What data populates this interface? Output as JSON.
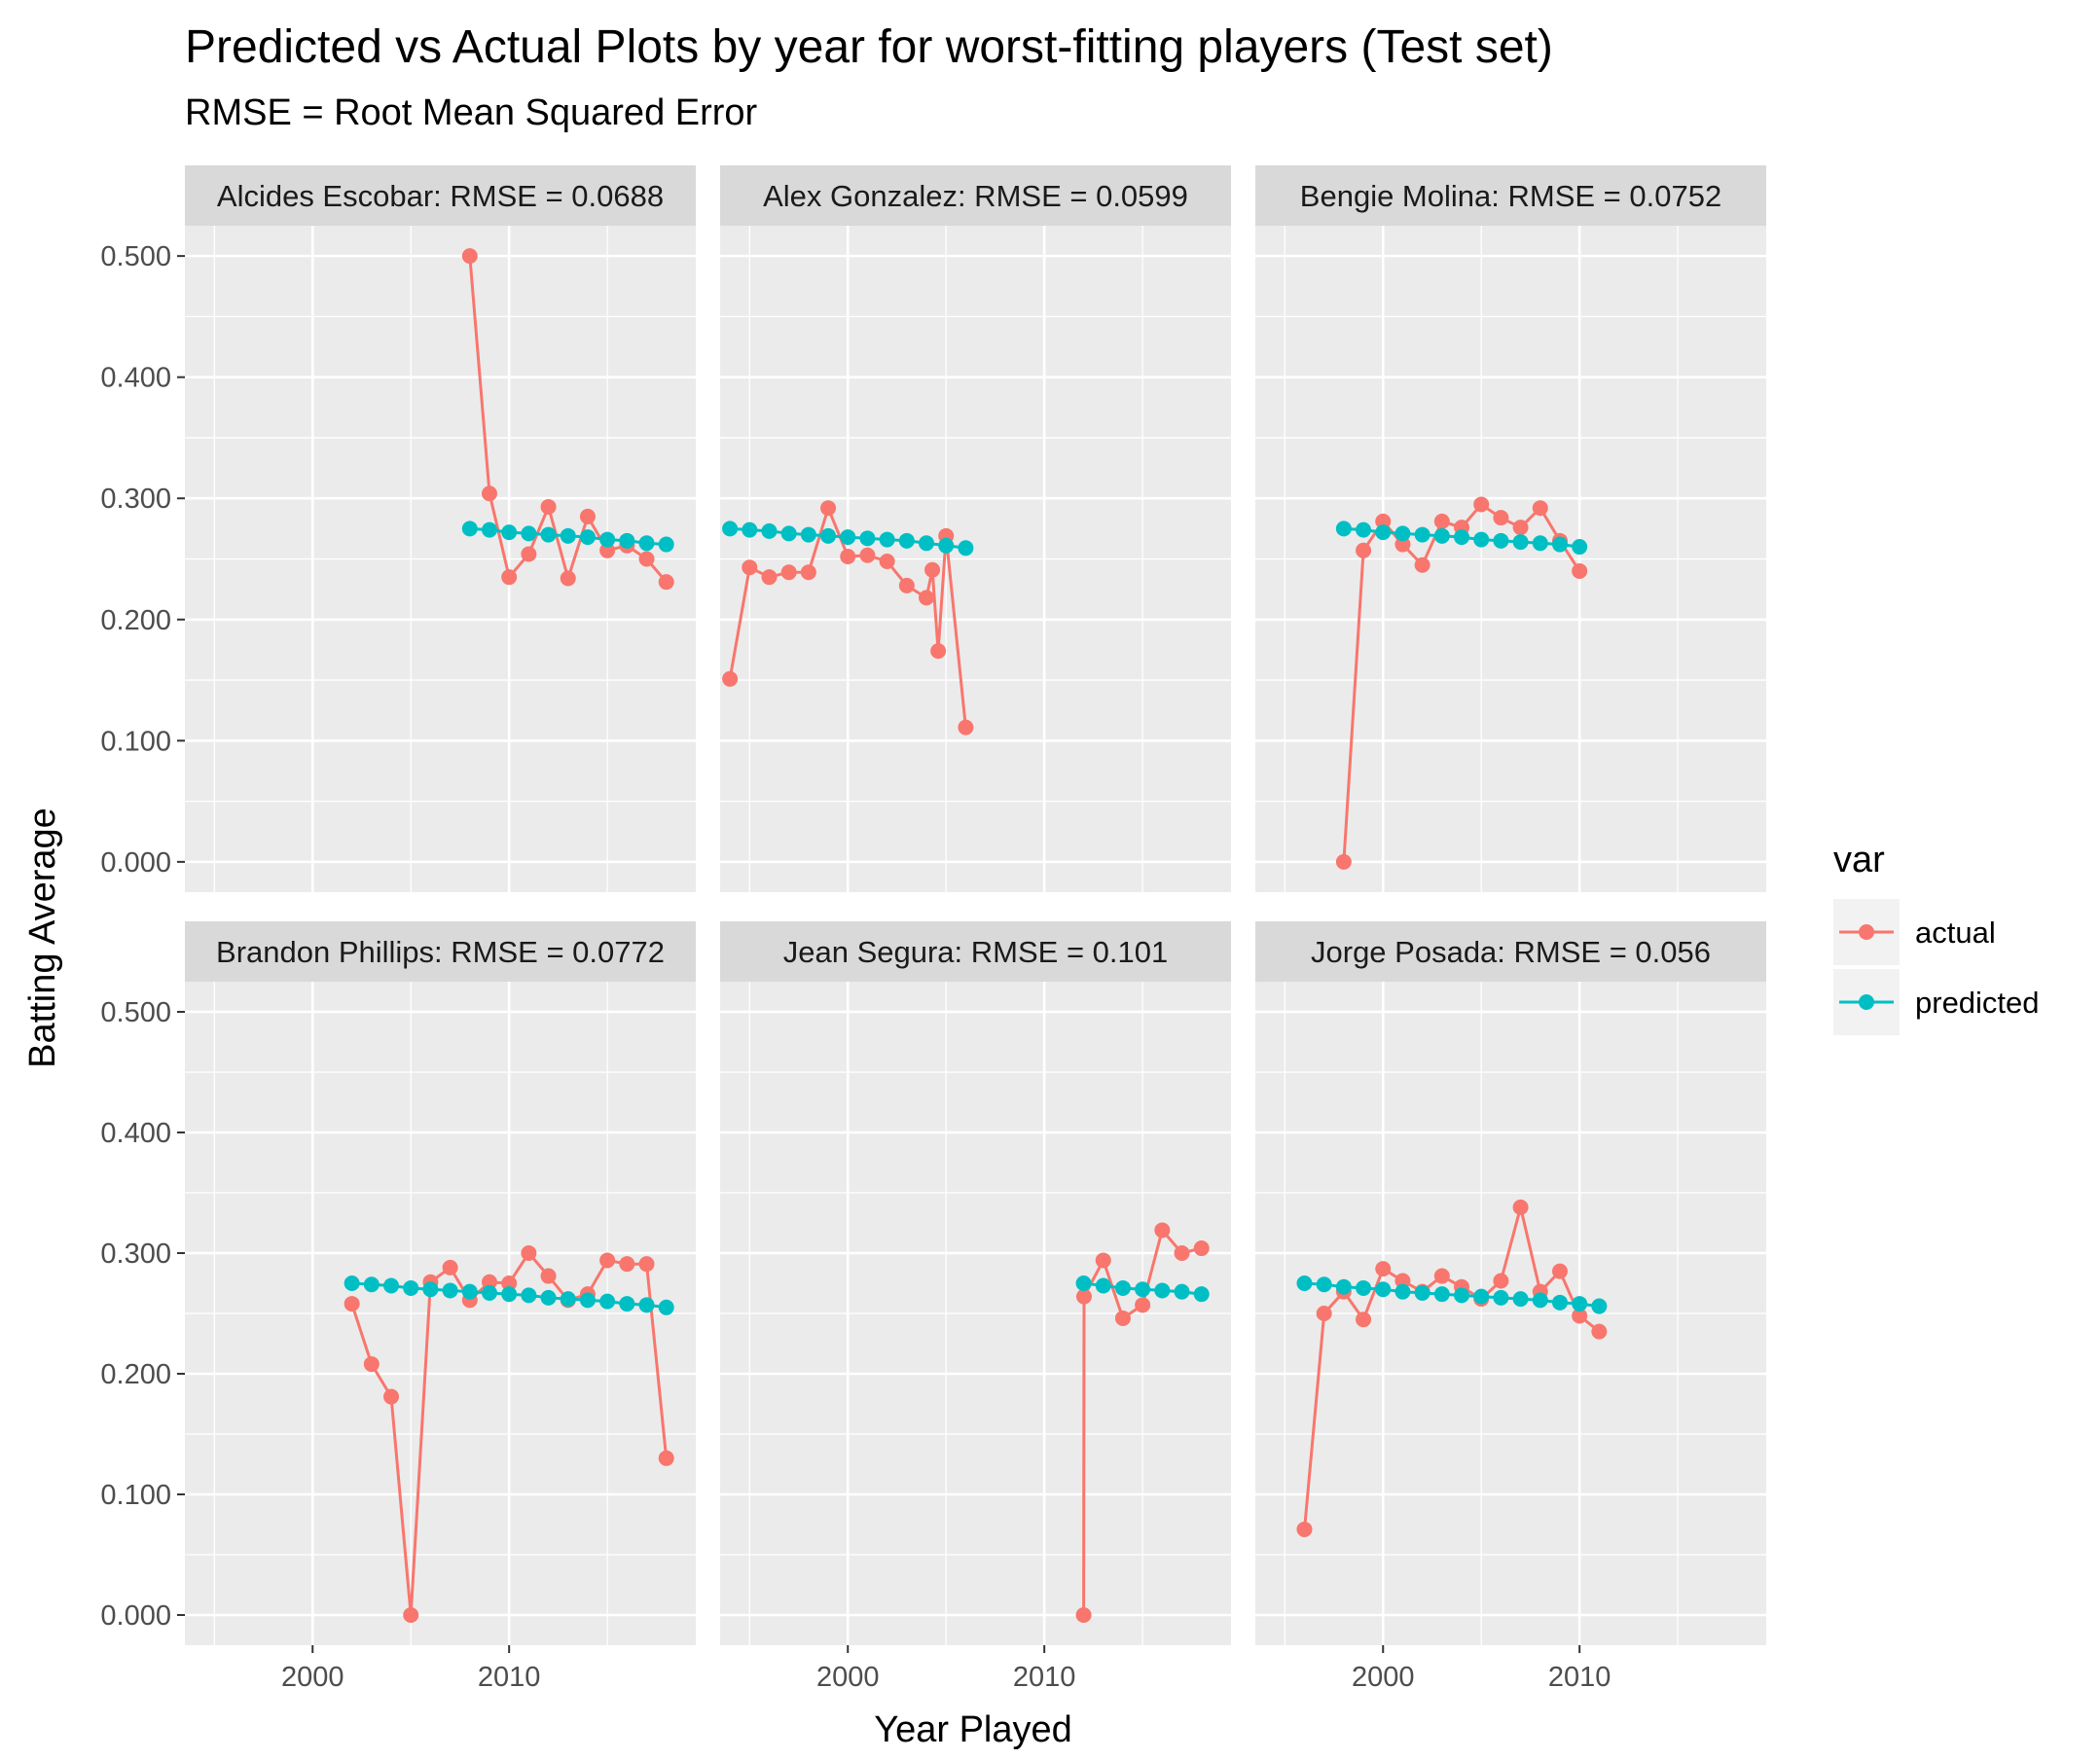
{
  "chart_data": {
    "type": "line",
    "title": "Predicted vs Actual Plots by year for worst-fitting players (Test set)",
    "subtitle": "RMSE = Root Mean Squared Error",
    "xlabel": "Year Played",
    "ylabel": "Batting Average",
    "xlim": [
      1993.5,
      2019.5
    ],
    "ylim": [
      -0.025,
      0.525
    ],
    "x_ticks": [
      2000,
      2010
    ],
    "x_tick_labels": [
      "2000",
      "2010"
    ],
    "y_ticks": [
      0,
      0.1,
      0.2,
      0.3,
      0.4,
      0.5
    ],
    "y_tick_labels": [
      "0.000",
      "0.100",
      "0.200",
      "0.300",
      "0.400",
      "0.500"
    ],
    "grid": true,
    "legend": {
      "title": "var",
      "position": "right",
      "entries": [
        {
          "label": "actual",
          "color": "#F8766D"
        },
        {
          "label": "predicted",
          "color": "#00BFC4"
        }
      ]
    },
    "facets": [
      {
        "label": "Alcides Escobar: RMSE = 0.0688",
        "series": [
          {
            "name": "actual",
            "x": [
              2008,
              2009,
              2010,
              2011,
              2012,
              2013,
              2014,
              2015,
              2016,
              2017,
              2018
            ],
            "y": [
              0.5,
              0.304,
              0.235,
              0.254,
              0.293,
              0.234,
              0.285,
              0.257,
              0.261,
              0.25,
              0.231
            ]
          },
          {
            "name": "predicted",
            "x": [
              2008,
              2009,
              2010,
              2011,
              2012,
              2013,
              2014,
              2015,
              2016,
              2017,
              2018
            ],
            "y": [
              0.275,
              0.274,
              0.272,
              0.271,
              0.27,
              0.269,
              0.268,
              0.266,
              0.265,
              0.263,
              0.262
            ]
          }
        ]
      },
      {
        "label": "Alex Gonzalez: RMSE = 0.0599",
        "series": [
          {
            "name": "actual",
            "x": [
              1994,
              1995,
              1996,
              1997,
              1998,
              1999,
              2000,
              2001,
              2002,
              2003,
              2004,
              2004.3,
              2004.6,
              2005,
              2006
            ],
            "y": [
              0.151,
              0.243,
              0.235,
              0.239,
              0.239,
              0.292,
              0.252,
              0.253,
              0.248,
              0.228,
              0.218,
              0.241,
              0.174,
              0.269,
              0.111
            ]
          },
          {
            "name": "predicted",
            "x": [
              1994,
              1995,
              1996,
              1997,
              1998,
              1999,
              2000,
              2001,
              2002,
              2003,
              2004,
              2005,
              2006
            ],
            "y": [
              0.275,
              0.274,
              0.273,
              0.271,
              0.27,
              0.269,
              0.268,
              0.267,
              0.266,
              0.265,
              0.263,
              0.261,
              0.259
            ]
          }
        ]
      },
      {
        "label": "Bengie Molina: RMSE = 0.0752",
        "series": [
          {
            "name": "actual",
            "x": [
              1998,
              1999,
              2000,
              2001,
              2002,
              2003,
              2004,
              2005,
              2006,
              2007,
              2008,
              2009,
              2010
            ],
            "y": [
              0.0,
              0.257,
              0.281,
              0.262,
              0.245,
              0.281,
              0.276,
              0.295,
              0.284,
              0.276,
              0.292,
              0.265,
              0.24
            ]
          },
          {
            "name": "predicted",
            "x": [
              1998,
              1999,
              2000,
              2001,
              2002,
              2003,
              2004,
              2005,
              2006,
              2007,
              2008,
              2009,
              2010
            ],
            "y": [
              0.275,
              0.274,
              0.272,
              0.271,
              0.27,
              0.269,
              0.268,
              0.266,
              0.265,
              0.264,
              0.263,
              0.262,
              0.26
            ]
          }
        ]
      },
      {
        "label": "Brandon Phillips: RMSE = 0.0772",
        "series": [
          {
            "name": "actual",
            "x": [
              2002,
              2003,
              2004,
              2005,
              2006,
              2007,
              2008,
              2009,
              2010,
              2011,
              2012,
              2013,
              2014,
              2015,
              2016,
              2017,
              2018
            ],
            "y": [
              0.258,
              0.208,
              0.181,
              0.0,
              0.276,
              0.288,
              0.261,
              0.276,
              0.275,
              0.3,
              0.281,
              0.261,
              0.266,
              0.294,
              0.291,
              0.291,
              0.13
            ]
          },
          {
            "name": "predicted",
            "x": [
              2002,
              2003,
              2004,
              2005,
              2006,
              2007,
              2008,
              2009,
              2010,
              2011,
              2012,
              2013,
              2014,
              2015,
              2016,
              2017,
              2018
            ],
            "y": [
              0.275,
              0.274,
              0.273,
              0.271,
              0.27,
              0.269,
              0.268,
              0.267,
              0.266,
              0.265,
              0.263,
              0.262,
              0.261,
              0.26,
              0.258,
              0.257,
              0.255
            ]
          }
        ]
      },
      {
        "label": "Jean Segura: RMSE = 0.101",
        "series": [
          {
            "name": "actual",
            "x": [
              2012,
              2012.02,
              2013,
              2014,
              2015,
              2016,
              2017,
              2018
            ],
            "y": [
              0.0,
              0.264,
              0.294,
              0.246,
              0.257,
              0.319,
              0.3,
              0.304
            ]
          },
          {
            "name": "predicted",
            "x": [
              2012,
              2013,
              2014,
              2015,
              2016,
              2017,
              2018
            ],
            "y": [
              0.275,
              0.273,
              0.271,
              0.27,
              0.269,
              0.268,
              0.266
            ]
          }
        ]
      },
      {
        "label": "Jorge Posada: RMSE = 0.056",
        "series": [
          {
            "name": "actual",
            "x": [
              1996,
              1997,
              1998,
              1999,
              2000,
              2001,
              2002,
              2003,
              2004,
              2005,
              2006,
              2007,
              2008,
              2009,
              2010,
              2011
            ],
            "y": [
              0.071,
              0.25,
              0.268,
              0.245,
              0.287,
              0.277,
              0.268,
              0.281,
              0.272,
              0.262,
              0.277,
              0.338,
              0.268,
              0.285,
              0.248,
              0.235
            ]
          },
          {
            "name": "predicted",
            "x": [
              1996,
              1997,
              1998,
              1999,
              2000,
              2001,
              2002,
              2003,
              2004,
              2005,
              2006,
              2007,
              2008,
              2009,
              2010,
              2011
            ],
            "y": [
              0.275,
              0.274,
              0.272,
              0.271,
              0.27,
              0.268,
              0.267,
              0.266,
              0.265,
              0.264,
              0.263,
              0.262,
              0.261,
              0.259,
              0.258,
              0.256
            ]
          }
        ]
      }
    ]
  }
}
